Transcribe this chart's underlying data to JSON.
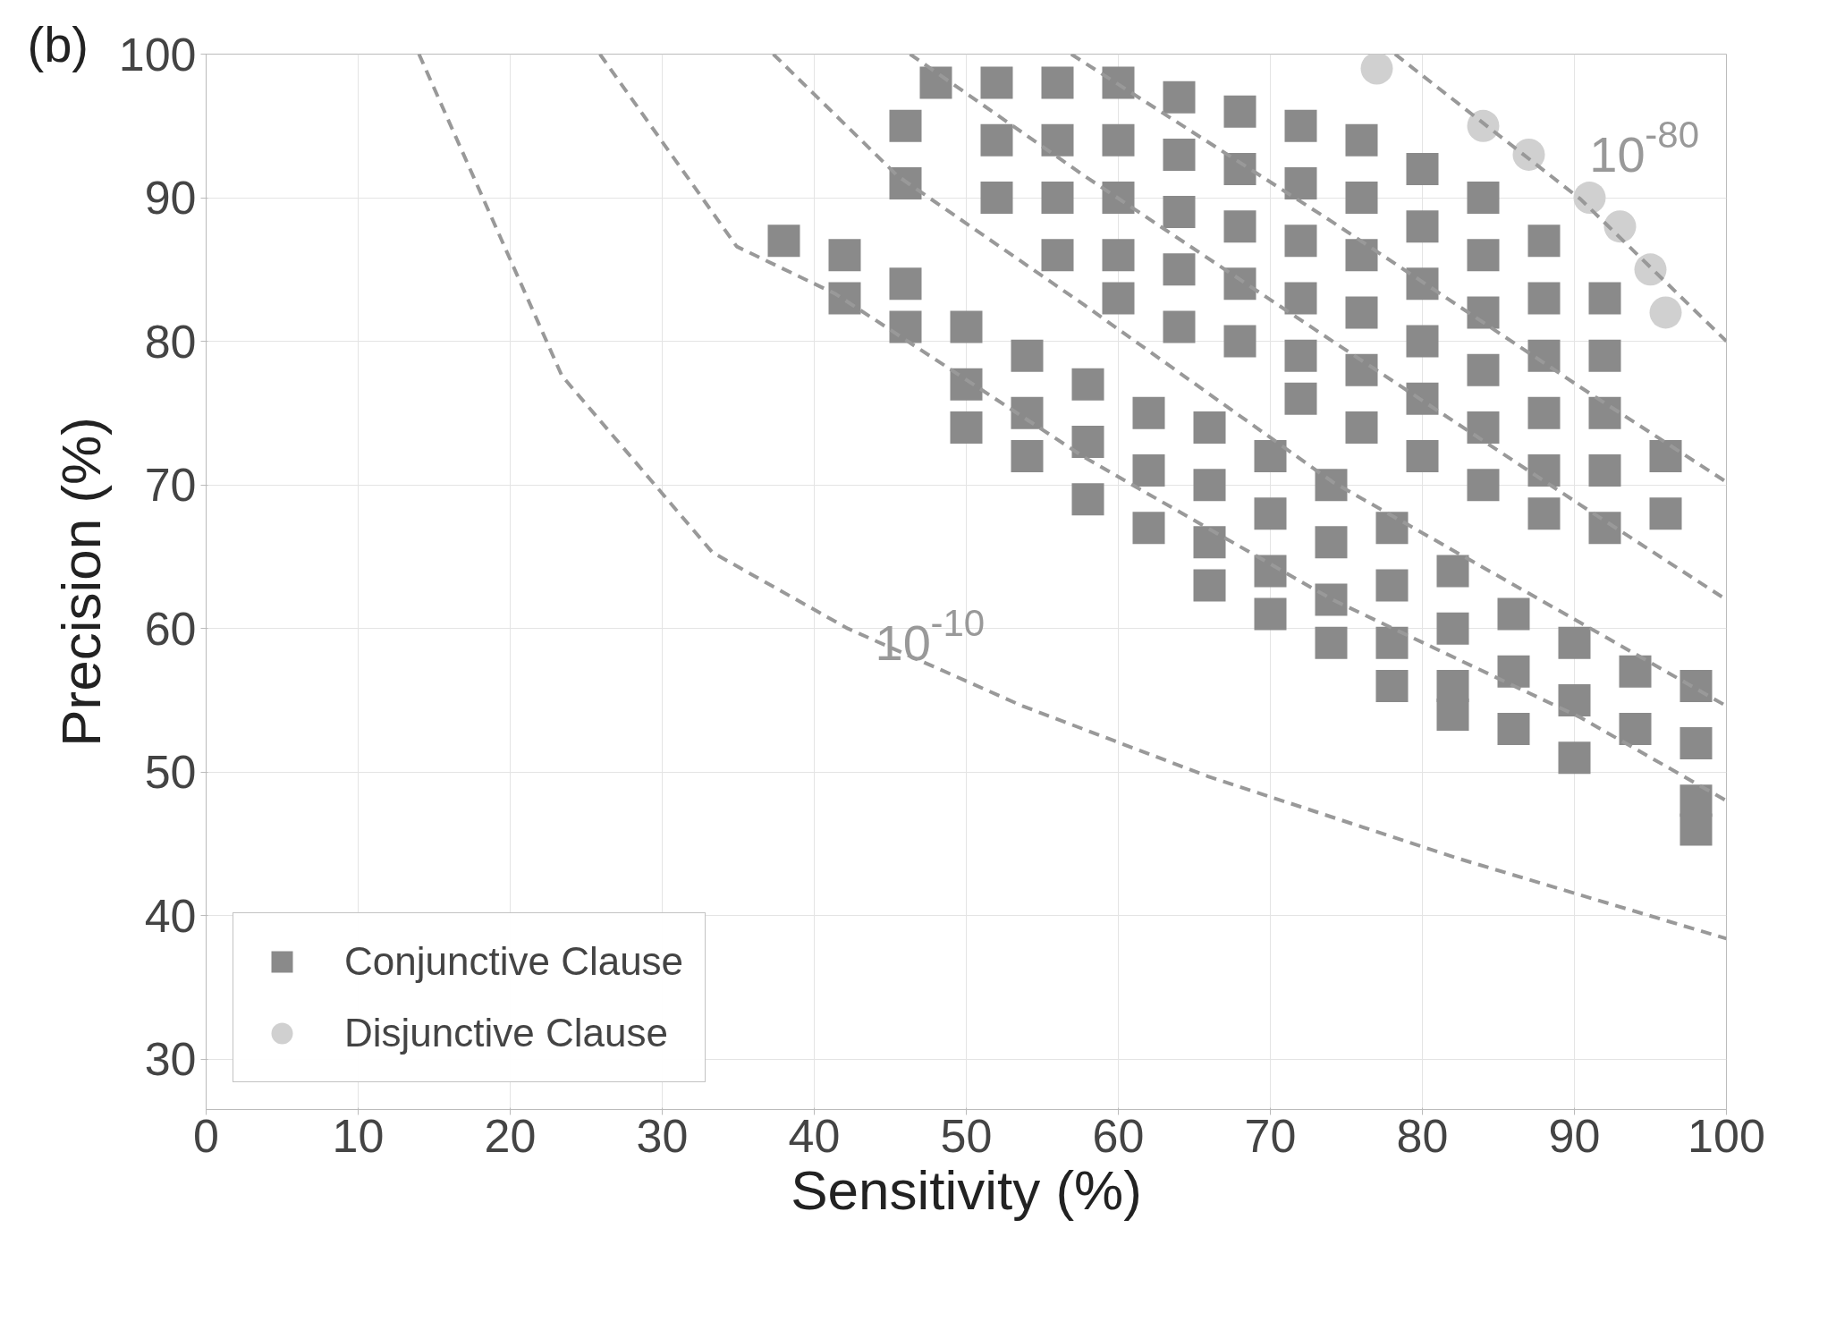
{
  "chart_data": {
    "type": "scatter",
    "xlabel": "Sensitivity (%)",
    "ylabel": "Precision (%)",
    "xlim": [
      0,
      100
    ],
    "ylim": [
      26.5,
      100
    ],
    "xticks": [
      0,
      10,
      20,
      30,
      40,
      50,
      60,
      70,
      80,
      90,
      100
    ],
    "yticks": [
      30,
      40,
      50,
      60,
      70,
      80,
      90,
      100
    ],
    "grid": true,
    "legend": "bottom left",
    "annotations": [
      "(b)",
      {
        "text": "10$^{-10}$",
        "x": 44,
        "y": 59
      },
      {
        "text": "10$^{-80}$",
        "x": 90.4,
        "y": 89.9
      }
    ],
    "series": [
      {
        "name": "Conjunctive Clause",
        "marker": "square",
        "color": "#8a8a8a",
        "x": [
          46,
          46,
          48,
          52,
          52,
          52,
          56,
          56,
          56,
          56,
          60,
          60,
          60,
          60,
          60,
          64,
          64,
          64,
          64,
          64,
          68,
          68,
          68,
          68,
          68,
          72,
          72,
          72,
          72,
          72,
          72,
          76,
          76,
          76,
          76,
          76,
          76,
          80,
          80,
          80,
          80,
          80,
          80,
          84,
          84,
          84,
          84,
          84,
          84,
          88,
          88,
          88,
          88,
          88,
          88,
          92,
          92,
          92,
          92,
          92,
          96,
          96,
          38,
          42,
          42,
          46,
          46,
          50,
          50,
          50,
          54,
          54,
          54,
          58,
          58,
          58,
          62,
          62,
          62,
          66,
          66,
          66,
          66,
          70,
          70,
          70,
          70,
          74,
          74,
          74,
          74,
          78,
          78,
          78,
          78,
          82,
          82,
          82,
          82,
          86,
          86,
          86,
          90,
          90,
          90,
          94,
          94,
          98,
          98,
          98,
          98
        ],
        "values": [
          95,
          91,
          98,
          98,
          94,
          90,
          98,
          94,
          90,
          86,
          98,
          94,
          90,
          86,
          83,
          97,
          93,
          89,
          85,
          81,
          96,
          92,
          88,
          84,
          80,
          95,
          91,
          87,
          83,
          79,
          76,
          94,
          90,
          86,
          82,
          78,
          74,
          92,
          88,
          84,
          80,
          76,
          72,
          90,
          86,
          82,
          78,
          74,
          70,
          87,
          83,
          79,
          75,
          71,
          68,
          83,
          79,
          75,
          71,
          67,
          72,
          68,
          87,
          86,
          83,
          84,
          81,
          81,
          77,
          74,
          79,
          75,
          72,
          77,
          73,
          69,
          75,
          71,
          67,
          74,
          70,
          66,
          63,
          72,
          68,
          64,
          61,
          70,
          66,
          62,
          59,
          67,
          63,
          59,
          56,
          64,
          60,
          56,
          54,
          61,
          57,
          53,
          59,
          55,
          51,
          57,
          53,
          56,
          52,
          48,
          46
        ]
      },
      {
        "name": "Disjunctive Clause",
        "marker": "circle",
        "color": "#d0d0d0",
        "x": [
          77,
          84,
          87,
          91,
          93,
          95,
          96
        ],
        "values": [
          99,
          95,
          93,
          90,
          88,
          85,
          82
        ]
      },
      {
        "type": "line",
        "line_style": "dashed",
        "color": "#999999",
        "x": [
          14,
          23.4,
          33.3,
          42.2,
          53.7,
          65.9,
          82.3,
          100
        ],
        "values": [
          100,
          77.6,
          65.3,
          60,
          54.6,
          49.7,
          44,
          38.4
        ]
      },
      {
        "type": "line",
        "line_style": "dashed",
        "color": "#999999",
        "x": [
          25.9,
          34.9,
          41.4,
          49.6,
          57.8,
          74.1,
          90.4,
          100
        ],
        "values": [
          100,
          86.6,
          83.3,
          77.6,
          71.9,
          62,
          53.8,
          48
        ]
      },
      {
        "type": "line",
        "line_style": "dashed",
        "color": "#999999",
        "x": [
          37.3,
          45.5,
          57.8,
          74.1,
          90.4,
          100
        ],
        "values": [
          100,
          91.5,
          82.5,
          70.2,
          60.4,
          54.6
        ]
      },
      {
        "type": "line",
        "line_style": "dashed",
        "color": "#999999",
        "x": [
          46.3,
          57.8,
          74.1,
          90.4,
          100
        ],
        "values": [
          100,
          91.5,
          80,
          68.6,
          62
        ]
      },
      {
        "type": "line",
        "line_style": "dashed",
        "color": "#999999",
        "x": [
          56.9,
          74.1,
          90.4,
          100
        ],
        "values": [
          100,
          88.3,
          76.8,
          70.2
        ]
      },
      {
        "type": "line",
        "line_style": "dashed",
        "color": "#999999",
        "x": [
          78.2,
          90.4,
          100
        ],
        "values": [
          100,
          89.9,
          80
        ]
      }
    ]
  }
}
